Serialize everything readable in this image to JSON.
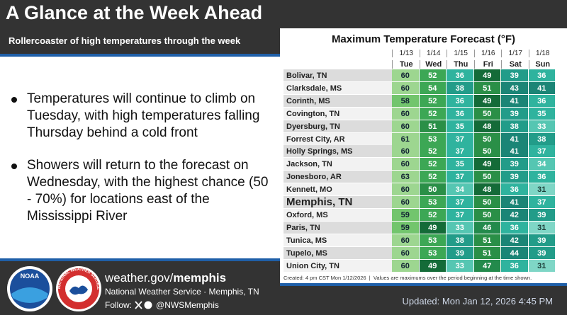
{
  "header": {
    "title": "A Glance at the Week Ahead",
    "subtitle": "Rollercoaster of high temperatures through the week"
  },
  "bullets": [
    "Temperatures will continue to climb on Tuesday, with high temperatures falling Thursday behind a cold front",
    "Showers will return to the forecast on Wednesday, with the highest chance (50 - 70%) for locations east of the Mississippi River"
  ],
  "table": {
    "title": "Maximum Temperature Forecast (°F)",
    "dates": [
      "1/13",
      "1/14",
      "1/15",
      "1/16",
      "1/17",
      "1/18"
    ],
    "days": [
      "Tue",
      "Wed",
      "Thu",
      "Fri",
      "Sat",
      "Sun"
    ],
    "rows": [
      {
        "location": "Bolivar, TN",
        "values": [
          60,
          52,
          36,
          49,
          39,
          36
        ]
      },
      {
        "location": "Clarksdale, MS",
        "values": [
          60,
          54,
          38,
          51,
          43,
          41
        ]
      },
      {
        "location": "Corinth, MS",
        "values": [
          58,
          52,
          36,
          49,
          41,
          36
        ]
      },
      {
        "location": "Covington, TN",
        "values": [
          60,
          52,
          36,
          50,
          39,
          35
        ]
      },
      {
        "location": "Dyersburg, TN",
        "values": [
          60,
          51,
          35,
          48,
          38,
          33
        ]
      },
      {
        "location": "Forrest City, AR",
        "values": [
          61,
          53,
          37,
          50,
          41,
          38
        ]
      },
      {
        "location": "Holly Springs, MS",
        "values": [
          60,
          52,
          37,
          50,
          41,
          37
        ]
      },
      {
        "location": "Jackson, TN",
        "values": [
          60,
          52,
          35,
          49,
          39,
          34
        ]
      },
      {
        "location": "Jonesboro, AR",
        "values": [
          63,
          52,
          37,
          50,
          39,
          36
        ]
      },
      {
        "location": "Kennett, MO",
        "values": [
          60,
          50,
          34,
          48,
          36,
          31
        ]
      },
      {
        "location": "Memphis, TN",
        "values": [
          60,
          53,
          37,
          50,
          41,
          37
        ],
        "bold": true
      },
      {
        "location": "Oxford, MS",
        "values": [
          59,
          52,
          37,
          50,
          42,
          39
        ]
      },
      {
        "location": "Paris, TN",
        "values": [
          59,
          49,
          33,
          46,
          36,
          31
        ]
      },
      {
        "location": "Tunica, MS",
        "values": [
          60,
          53,
          38,
          51,
          42,
          39
        ]
      },
      {
        "location": "Tupelo, MS",
        "values": [
          60,
          53,
          39,
          51,
          44,
          39
        ]
      },
      {
        "location": "Union City, TN",
        "values": [
          60,
          49,
          33,
          47,
          36,
          31
        ]
      }
    ],
    "note": "Created: 4 pm CST Mon 1/12/2026  |  Values are maximums over the period beginning at the time shown."
  },
  "footer": {
    "url_prefix": "weather.gov/",
    "url_bold": "memphis",
    "office": "National Weather Service · Memphis, TN",
    "follow": "Follow:",
    "handle": "@NWSMemphis",
    "updated": "Updated: Mon Jan 12, 2026 4:45 PM",
    "logos": [
      "NOAA",
      "NATIONAL WEATHER SERVICE"
    ]
  }
}
